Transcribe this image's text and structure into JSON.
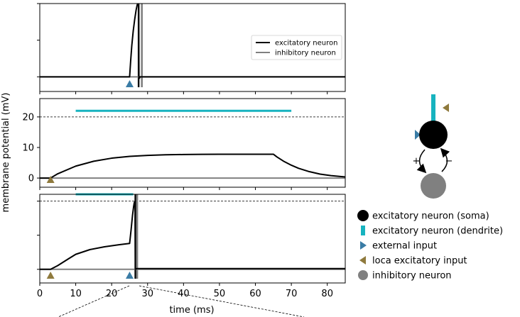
{
  "chart_data": {
    "type": "line",
    "ylabel": "membrane potential (mV)",
    "xlabel": "time (ms)",
    "xlim": [
      0,
      85
    ],
    "xticks": [
      0,
      10,
      20,
      30,
      40,
      50,
      60,
      70,
      80
    ],
    "colors": {
      "excitatory": "#000000",
      "inhibitory": "#808080",
      "dendrite": "#17b3bf",
      "external_input": "#3a7ca5",
      "local_input": "#8f7a3d"
    },
    "panels": [
      {
        "id": "top",
        "ylim": [
          -4,
          20
        ],
        "yticks": [
          0,
          10,
          20
        ],
        "ytick_labels": [
          "",
          "",
          ""
        ],
        "threshold": 20,
        "legend": {
          "position": "upper-right",
          "entries": [
            "excitatory neuron",
            "inhibitory neuron"
          ]
        },
        "series": [
          {
            "name": "excitatory neuron",
            "x": [
              0,
              25,
              25.3,
              25.6,
              26,
              26.4,
              26.8,
              27.1,
              27.35,
              27.5,
              27.6,
              27.7,
              27.9,
              85
            ],
            "y": [
              0,
              0,
              4.5,
              8.5,
              12.5,
              15.6,
              18.2,
              19.6,
              20.3,
              20.5,
              0,
              -0.4,
              0,
              0
            ]
          },
          {
            "name": "inhibitory neuron",
            "x": [
              0,
              27.6,
              28.8,
              29.2,
              85
            ],
            "y": [
              0,
              0,
              0,
              0,
              0
            ]
          }
        ],
        "spikes": [
          {
            "name": "excitatory",
            "x": 27.5
          },
          {
            "name": "inhibitory",
            "x": 28.4
          }
        ],
        "markers": [
          {
            "kind": "external",
            "x": 25
          }
        ],
        "dendrite_bar": null
      },
      {
        "id": "middle",
        "ylim": [
          -3,
          26
        ],
        "yticks": [
          0,
          10,
          20
        ],
        "ytick_labels": [
          "0",
          "10",
          "20"
        ],
        "threshold": 20,
        "legend": null,
        "series": [
          {
            "name": "excitatory neuron",
            "x": [
              0,
              3,
              5,
              10,
              15,
              20,
              25,
              30,
              35,
              40,
              45,
              50,
              55,
              60,
              65,
              66,
              68,
              70,
              72,
              75,
              78,
              81,
              85
            ],
            "y": [
              0,
              0,
              1.4,
              3.9,
              5.5,
              6.5,
              7.1,
              7.4,
              7.6,
              7.7,
              7.75,
              7.8,
              7.8,
              7.8,
              7.8,
              6.9,
              5.4,
              4.2,
              3.2,
              2.1,
              1.3,
              0.8,
              0.35
            ]
          },
          {
            "name": "inhibitory neuron",
            "x": [
              0,
              85
            ],
            "y": [
              0,
              0
            ]
          }
        ],
        "spikes": [],
        "markers": [
          {
            "kind": "local",
            "x": 3
          }
        ],
        "dendrite_bar": {
          "x0": 10,
          "x1": 70,
          "level": 22
        }
      },
      {
        "id": "bottom",
        "ylim": [
          -4,
          22
        ],
        "yticks": [
          0,
          10,
          20
        ],
        "ytick_labels": [
          "",
          "",
          ""
        ],
        "threshold": 20,
        "legend": null,
        "series": [
          {
            "name": "excitatory neuron",
            "x": [
              0,
              3,
              5,
              8,
              10,
              14,
              18,
              22,
              25,
              25.4,
              25.8,
              26.1,
              26.3,
              26.5,
              26.6,
              27,
              85
            ],
            "y": [
              0,
              0,
              1.1,
              3.1,
              4.4,
              5.8,
              6.6,
              7.2,
              7.6,
              11.5,
              15.8,
              18.3,
              19.6,
              19.9,
              0,
              0.2,
              0.2
            ]
          },
          {
            "name": "inhibitory neuron",
            "x": [
              0,
              26.6,
              85
            ],
            "y": [
              0,
              0,
              0
            ]
          }
        ],
        "spikes": [
          {
            "name": "excitatory",
            "x": 26.6
          },
          {
            "name": "inhibitory",
            "x": 27.1
          }
        ],
        "markers": [
          {
            "kind": "local",
            "x": 3
          },
          {
            "kind": "external",
            "x": 25
          }
        ],
        "dendrite_bar": {
          "x0": 10,
          "x1": 26,
          "level": 22
        }
      }
    ],
    "diagram": {
      "plus_label": "+",
      "minus_label": "−"
    },
    "side_legend": [
      {
        "kind": "soma",
        "label": "excitatory neuron (soma)"
      },
      {
        "kind": "dendrite",
        "label": "excitatory neuron (dendrite)"
      },
      {
        "kind": "external",
        "label": "external input"
      },
      {
        "kind": "local",
        "label": "loca excitatory input"
      },
      {
        "kind": "inhibitory",
        "label": "inhibitory neuron"
      }
    ]
  }
}
